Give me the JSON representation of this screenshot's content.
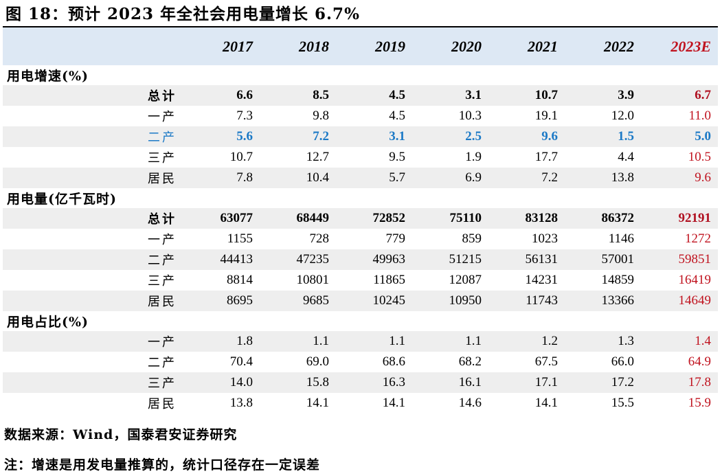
{
  "title": "图 18：预计 2023 年全社会用电量增长 6.7%",
  "columns": [
    "2017",
    "2018",
    "2019",
    "2020",
    "2021",
    "2022",
    "2023E"
  ],
  "sections": [
    {
      "heading": "用电增速(%)",
      "rows": [
        {
          "label": "总计",
          "values": [
            "6.6",
            "8.5",
            "4.5",
            "3.1",
            "10.7",
            "3.9",
            "6.7"
          ]
        },
        {
          "label": "一产",
          "values": [
            "7.3",
            "9.8",
            "4.5",
            "10.3",
            "19.1",
            "12.0",
            "11.0"
          ]
        },
        {
          "label": "二产",
          "values": [
            "5.6",
            "7.2",
            "3.1",
            "2.5",
            "9.6",
            "1.5",
            "5.0"
          ]
        },
        {
          "label": "三产",
          "values": [
            "10.7",
            "12.7",
            "9.5",
            "1.9",
            "17.7",
            "4.4",
            "10.5"
          ]
        },
        {
          "label": "居民",
          "values": [
            "7.8",
            "10.4",
            "5.7",
            "6.9",
            "7.2",
            "13.8",
            "9.6"
          ]
        }
      ]
    },
    {
      "heading": "用电量(亿千瓦时)",
      "rows": [
        {
          "label": "总计",
          "values": [
            "63077",
            "68449",
            "72852",
            "75110",
            "83128",
            "86372",
            "92191"
          ]
        },
        {
          "label": "一产",
          "values": [
            "1155",
            "728",
            "779",
            "859",
            "1023",
            "1146",
            "1272"
          ]
        },
        {
          "label": "二产",
          "values": [
            "44413",
            "47235",
            "49963",
            "51215",
            "56131",
            "57001",
            "59851"
          ]
        },
        {
          "label": "三产",
          "values": [
            "8814",
            "10801",
            "11865",
            "12087",
            "14231",
            "14859",
            "16419"
          ]
        },
        {
          "label": "居民",
          "values": [
            "8695",
            "9685",
            "10245",
            "10950",
            "11743",
            "13366",
            "14649"
          ]
        }
      ]
    },
    {
      "heading": "用电占比(%)",
      "rows": [
        {
          "label": "一产",
          "values": [
            "1.8",
            "1.1",
            "1.1",
            "1.1",
            "1.2",
            "1.3",
            "1.4"
          ]
        },
        {
          "label": "二产",
          "values": [
            "70.4",
            "69.0",
            "68.6",
            "68.2",
            "67.5",
            "66.0",
            "64.9"
          ]
        },
        {
          "label": "三产",
          "values": [
            "14.0",
            "15.8",
            "16.3",
            "16.1",
            "17.1",
            "17.2",
            "17.8"
          ]
        },
        {
          "label": "居民",
          "values": [
            "13.8",
            "14.1",
            "14.1",
            "14.6",
            "14.1",
            "15.5",
            "15.9"
          ]
        }
      ]
    }
  ],
  "source": "数据来源：Wind，国泰君安证券研究",
  "note": "注：增速是用发电量推算的，统计口径存在一定误差",
  "colors": {
    "header_bg": "#dde8f4",
    "shade_bg": "#eeeeee",
    "forecast_red": "#c0121e",
    "highlight_blue": "#1b79c6"
  }
}
